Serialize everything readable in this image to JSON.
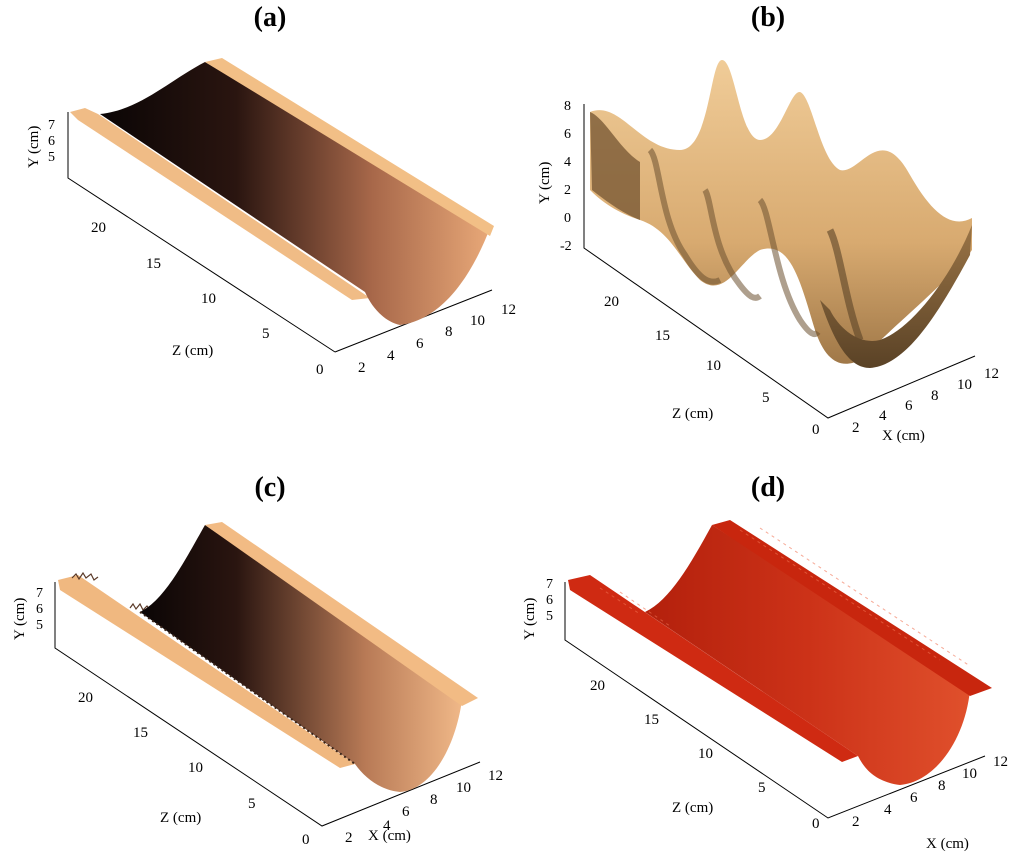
{
  "panels": {
    "a": {
      "label": "(a)",
      "y_axis_label": "Y (cm)",
      "z_axis_label": "Z (cm)",
      "y_ticks": [
        "7",
        "6",
        "5"
      ],
      "z_ticks": [
        "20",
        "15",
        "10",
        "5",
        "0"
      ],
      "x_ticks": [
        "2",
        "4",
        "6",
        "8",
        "10",
        "12"
      ]
    },
    "b": {
      "label": "(b)",
      "y_axis_label": "Y (cm)",
      "z_axis_label": "Z (cm)",
      "x_axis_label": "X (cm)",
      "y_ticks": [
        "8",
        "6",
        "4",
        "2",
        "0",
        "-2"
      ],
      "z_ticks": [
        "20",
        "15",
        "10",
        "5",
        "0"
      ],
      "x_ticks": [
        "2",
        "4",
        "6",
        "8",
        "10",
        "12"
      ]
    },
    "c": {
      "label": "(c)",
      "y_axis_label": "Y (cm)",
      "z_axis_label": "Z (cm)",
      "x_axis_label": "X (cm)",
      "y_ticks": [
        "7",
        "6",
        "5"
      ],
      "z_ticks": [
        "20",
        "15",
        "10",
        "5",
        "0"
      ],
      "x_ticks": [
        "2",
        "4",
        "6",
        "8",
        "10",
        "12"
      ]
    },
    "d": {
      "label": "(d)",
      "y_axis_label": "Y (cm)",
      "z_axis_label": "Z (cm)",
      "x_axis_label": "X (cm)",
      "y_ticks": [
        "7",
        "6",
        "5"
      ],
      "z_ticks": [
        "20",
        "15",
        "10",
        "5",
        "0"
      ],
      "x_ticks": [
        "2",
        "4",
        "6",
        "8",
        "10",
        "12"
      ]
    }
  },
  "colors": {
    "copper_light": "#f2bf86",
    "copper_mid": "#c07a50",
    "copper_dark": "#0a0505",
    "sand_light": "#e8c290",
    "sand_dark": "#6b5030",
    "red_light": "#e05030",
    "red_dark": "#a31808"
  }
}
